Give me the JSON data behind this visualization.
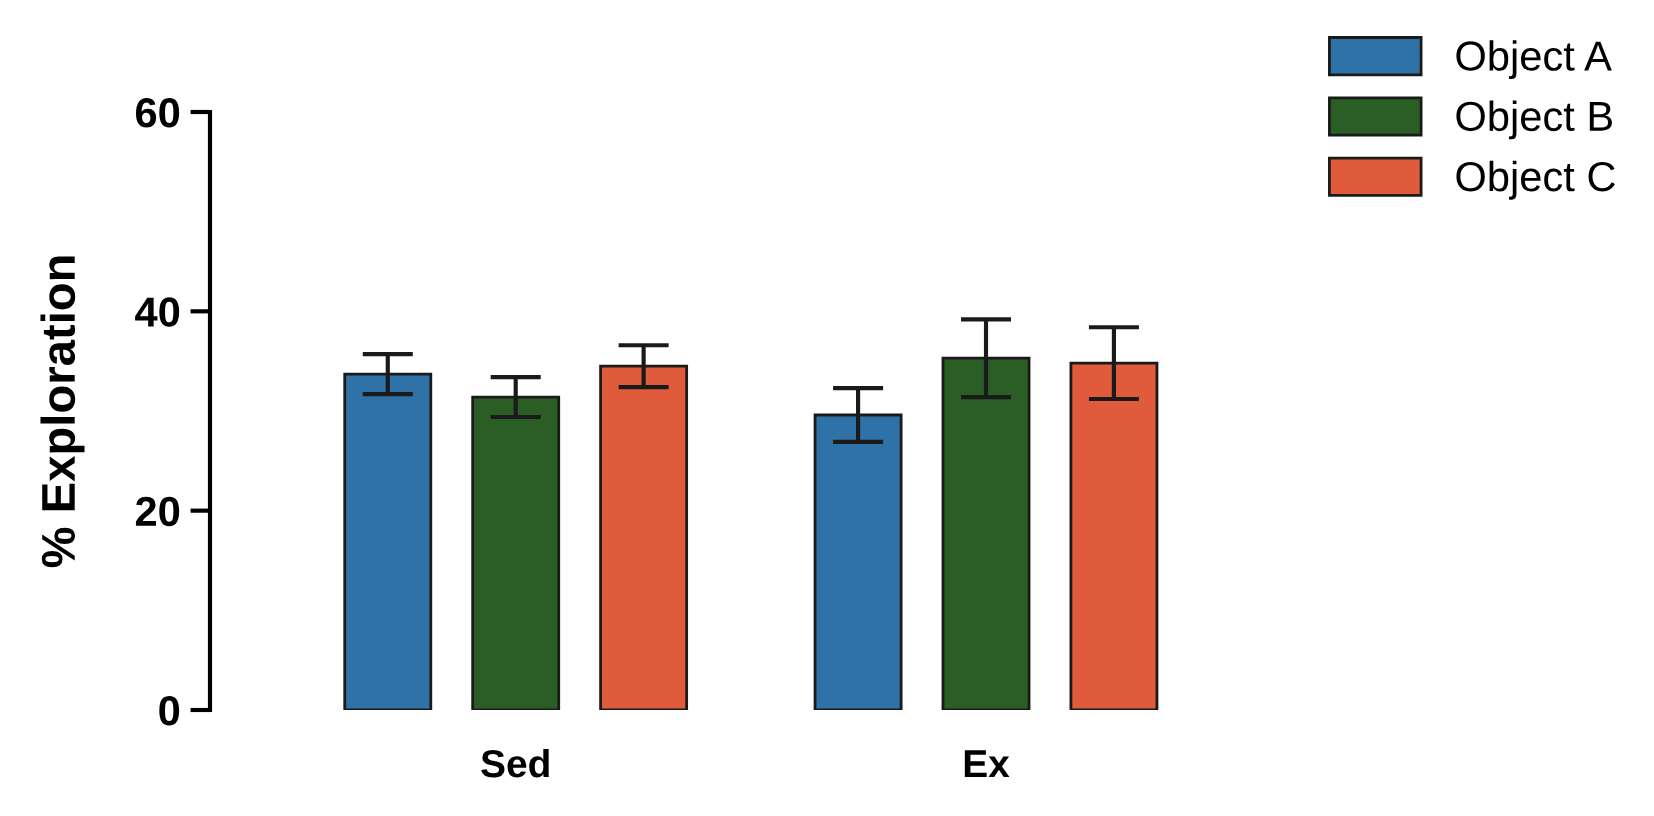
{
  "chart_data": {
    "type": "bar",
    "ylabel": "% Exploration",
    "categories": [
      "Sed",
      "Ex"
    ],
    "series": [
      {
        "name": "Object A",
        "color": "#2f72a8",
        "values": [
          33.7,
          29.6
        ],
        "errors": [
          2.0,
          2.7
        ]
      },
      {
        "name": "Object B",
        "color": "#2a5e25",
        "values": [
          31.4,
          35.3
        ],
        "errors": [
          2.0,
          3.9
        ]
      },
      {
        "name": "Object C",
        "color": "#e05a3c",
        "values": [
          34.5,
          34.8
        ],
        "errors": [
          2.1,
          3.6
        ]
      }
    ],
    "ylim": [
      0,
      60
    ],
    "yticks": [
      0,
      20,
      40,
      60
    ],
    "grid": false,
    "legend": "top right"
  }
}
